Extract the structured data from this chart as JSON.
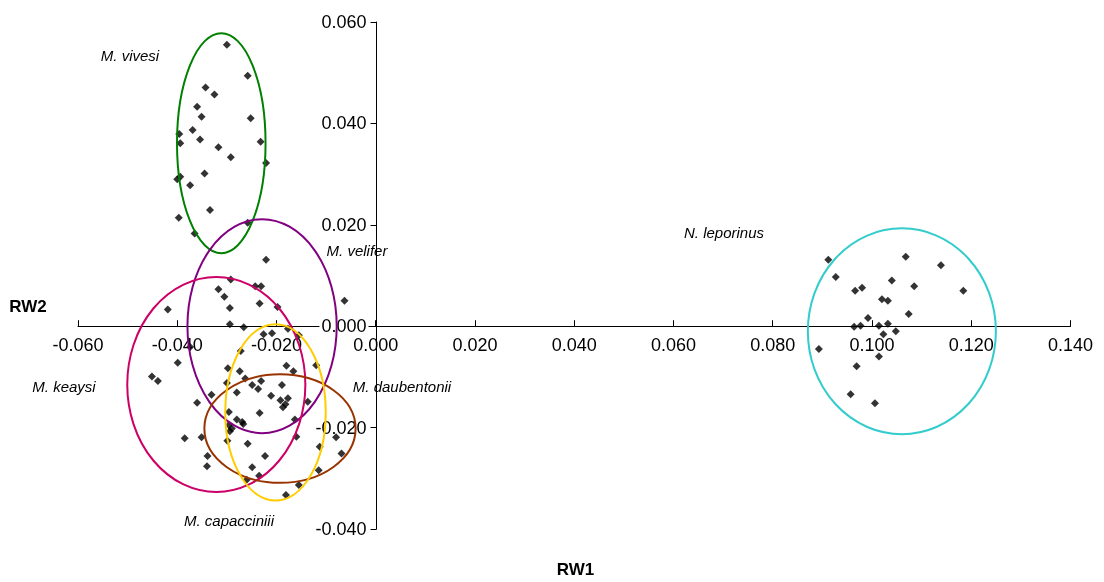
{
  "chart_data": {
    "type": "scatter",
    "xlabel": "RW1",
    "ylabel": "RW2",
    "xlim": [
      -0.06,
      0.14
    ],
    "xticks": [
      {
        "value": -0.06,
        "label": "-0.060"
      },
      {
        "value": -0.04,
        "label": "-0.040"
      },
      {
        "value": -0.02,
        "label": "-0.020"
      },
      {
        "value": 0,
        "label": "0.000"
      },
      {
        "value": 0.02,
        "label": "0.020"
      },
      {
        "value": 0.04,
        "label": "0.040"
      },
      {
        "value": 0.06,
        "label": "0.060"
      },
      {
        "value": 0.08,
        "label": "0.080"
      },
      {
        "value": 0.1,
        "label": "0.100"
      },
      {
        "value": 0.12,
        "label": "0.120"
      },
      {
        "value": 0.14,
        "label": "0.140"
      }
    ],
    "ylim": [
      -0.04,
      0.06
    ],
    "yticks": [
      {
        "value": -0.04,
        "label": "-0.040"
      },
      {
        "value": -0.02,
        "label": "-0.020"
      },
      {
        "value": 0,
        "label": "0.000"
      },
      {
        "value": 0.02,
        "label": "0.020"
      },
      {
        "value": 0.04,
        "label": "0.040"
      },
      {
        "value": 0.06,
        "label": "0.060"
      }
    ],
    "marker": "diamond",
    "annotations": [
      "M. vivesi",
      "M. velifer",
      "N. leporinus",
      "M. keaysi",
      "M. daubentonii",
      "M. capacciniii"
    ],
    "series": [
      {
        "color": "#000000",
        "x": [
          -0.03,
          -0.0258,
          -0.0343,
          -0.0325,
          -0.036,
          -0.0351,
          -0.0252,
          -0.0396,
          -0.0394,
          -0.0369,
          -0.0354,
          -0.0232,
          -0.0317,
          -0.0292,
          -0.0221,
          -0.0394,
          -0.04,
          -0.0345,
          -0.0374,
          -0.0334,
          -0.0397,
          -0.0258,
          -0.0365,
          -0.0221,
          -0.0292,
          -0.0317,
          -0.0243,
          -0.0231,
          -0.0305,
          -0.0419,
          -0.0294,
          -0.0234,
          -0.0198,
          -0.0063,
          -0.0294,
          -0.0266,
          -0.0226,
          -0.0209,
          -0.0177,
          -0.0155,
          -0.0374,
          -0.0272,
          -0.0399,
          -0.0451,
          -0.0439,
          -0.0298,
          -0.0274,
          -0.0263,
          -0.03,
          -0.0249,
          -0.0231,
          -0.0237,
          -0.0189,
          -0.0166,
          -0.018,
          -0.012,
          -0.028,
          -0.0331,
          -0.0211,
          -0.0192,
          -0.0177,
          -0.0182,
          -0.0187,
          -0.0137,
          -0.036,
          -0.0296,
          -0.0234,
          -0.0163,
          -0.028,
          -0.0269,
          -0.0267,
          -0.0296,
          -0.029,
          -0.0294,
          -0.0385,
          -0.0351,
          -0.0299,
          -0.0258,
          -0.016,
          -0.008,
          -0.0113,
          -0.0069,
          -0.0339,
          -0.0223,
          -0.034,
          -0.0249,
          -0.0235,
          -0.0115,
          -0.026,
          -0.0155,
          -0.0181,
          0.0912,
          0.0927,
          0.0966,
          0.098,
          0.1068,
          0.1139,
          0.1184,
          0.104,
          0.1085,
          0.102,
          0.1032,
          0.1074,
          0.0992,
          0.0964,
          0.0977,
          0.1014,
          0.1032,
          0.1048,
          0.1023,
          0.0893,
          0.0969,
          0.1014,
          0.0957,
          0.1006
        ],
        "values": [
          0.0555,
          0.0494,
          0.0471,
          0.0457,
          0.0433,
          0.0413,
          0.041,
          0.0379,
          0.0361,
          0.0387,
          0.0368,
          0.0364,
          0.0353,
          0.0333,
          0.0322,
          0.0295,
          0.029,
          0.0301,
          0.0278,
          0.0229,
          0.0214,
          0.0204,
          0.0183,
          0.0131,
          0.0092,
          0.0073,
          0.0079,
          0.0079,
          0.0058,
          0.0033,
          0.0036,
          0.0045,
          0.0038,
          0.005,
          0.0004,
          -0.0002,
          -0.0016,
          -0.0014,
          -0.0005,
          -0.0018,
          -0.0041,
          -0.0049,
          -0.0072,
          -0.0099,
          -0.0108,
          -0.0083,
          -0.0089,
          -0.0103,
          -0.0112,
          -0.0116,
          -0.0108,
          -0.0124,
          -0.0116,
          -0.0089,
          -0.0078,
          -0.0077,
          -0.0131,
          -0.0135,
          -0.0137,
          -0.0146,
          -0.0142,
          -0.0154,
          -0.016,
          -0.0149,
          -0.0151,
          -0.0169,
          -0.0171,
          -0.0184,
          -0.0184,
          -0.0189,
          -0.0193,
          -0.0195,
          -0.0202,
          -0.0207,
          -0.0221,
          -0.0219,
          -0.0226,
          -0.0232,
          -0.0218,
          -0.0219,
          -0.0238,
          -0.0251,
          -0.0256,
          -0.0256,
          -0.0276,
          -0.0278,
          -0.0295,
          -0.0284,
          -0.0303,
          -0.0313,
          -0.0333,
          0.0131,
          0.0097,
          0.007,
          0.0076,
          0.0137,
          0.012,
          0.007,
          0.009,
          0.0079,
          0.0053,
          0.005,
          0.0024,
          0.0016,
          -0.0001,
          0.0001,
          0.0001,
          0.0005,
          -0.001,
          -0.0016,
          -0.0045,
          -0.0079,
          -0.006,
          -0.0134,
          -0.0152
        ]
      }
    ]
  }
}
